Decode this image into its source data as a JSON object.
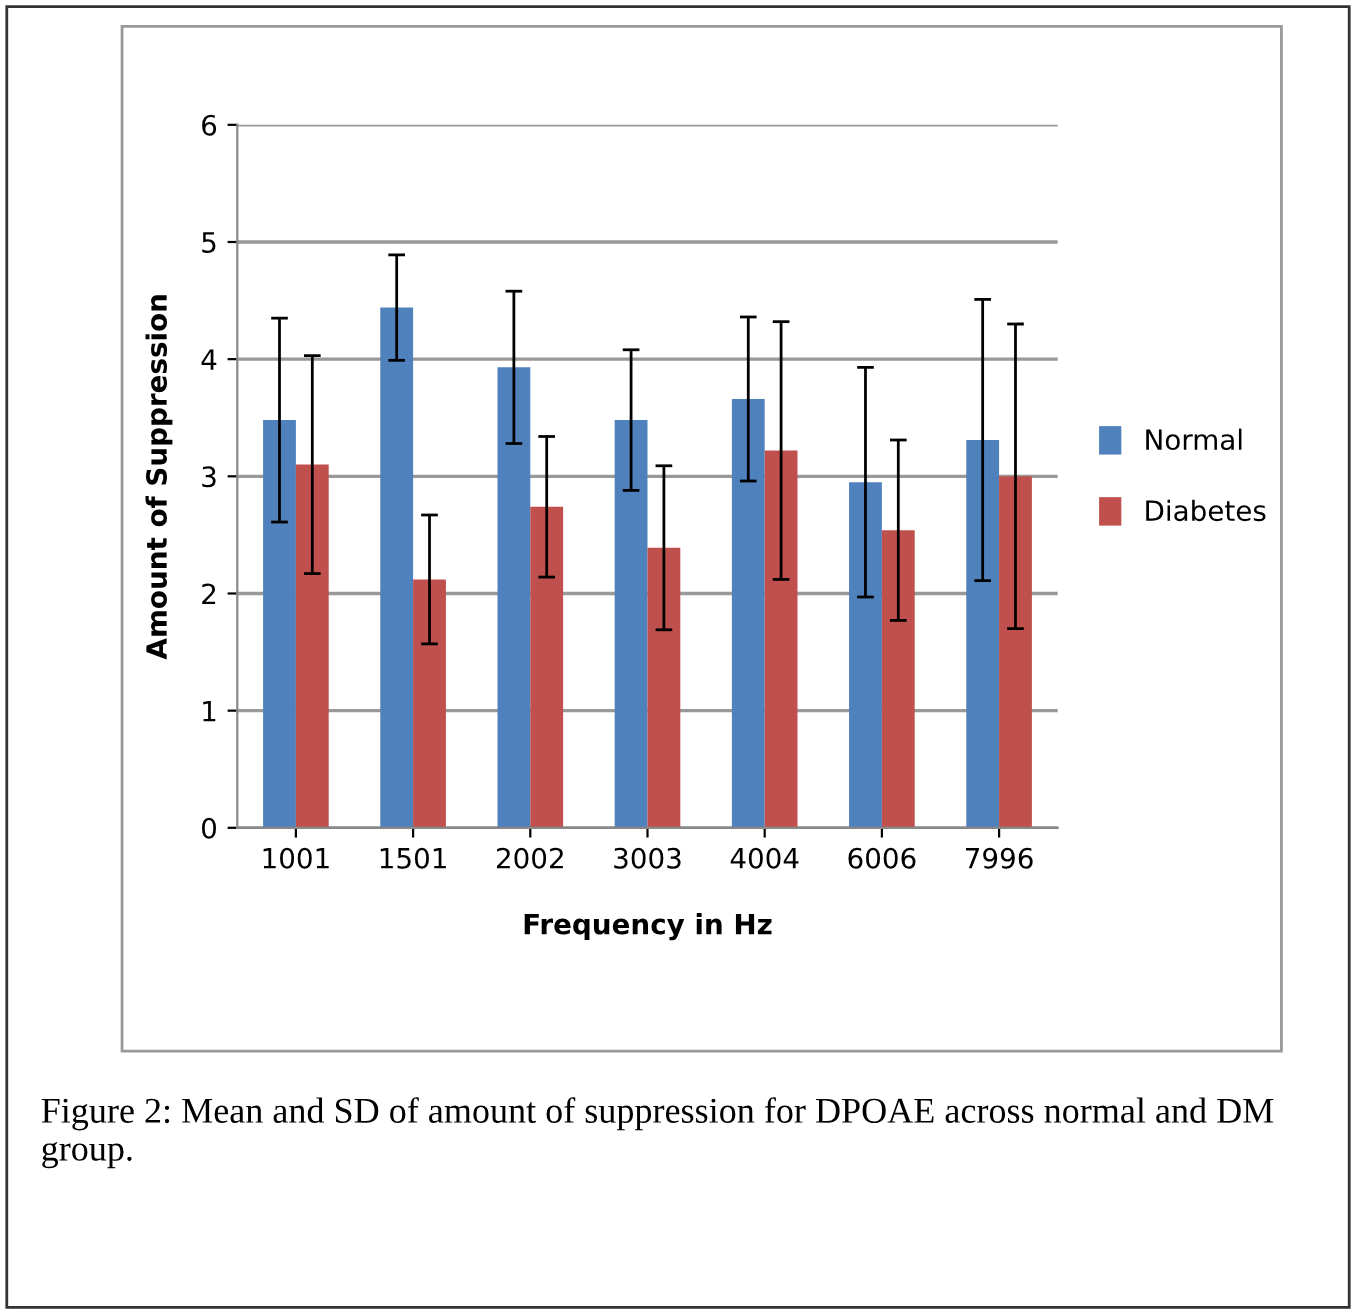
{
  "chart_data": {
    "type": "bar",
    "categories": [
      "1001",
      "1501",
      "2002",
      "3003",
      "4004",
      "6006",
      "7996"
    ],
    "series": [
      {
        "name": "Normal",
        "color": "#4f81bd",
        "values": [
          3.48,
          4.44,
          3.93,
          3.48,
          3.66,
          2.95,
          3.31
        ],
        "errors": [
          0.87,
          0.45,
          0.65,
          0.6,
          0.7,
          0.98,
          1.2
        ]
      },
      {
        "name": "Diabetes",
        "color": "#c0504d",
        "values": [
          3.1,
          2.12,
          2.74,
          2.39,
          3.22,
          2.54,
          3.0
        ],
        "errors": [
          0.93,
          0.55,
          0.6,
          0.7,
          1.1,
          0.77,
          1.3
        ]
      }
    ],
    "xlabel": "Frequency in Hz",
    "ylabel": "Amount of Suppression",
    "ylim": [
      0,
      6
    ],
    "yticks": [
      0,
      1,
      2,
      3,
      4,
      5,
      6
    ],
    "grid": "y",
    "legend": "right",
    "annotations": [
      "Figure 2: Mean and SD of amount of suppression for DPOAE across normal and DM group."
    ]
  }
}
